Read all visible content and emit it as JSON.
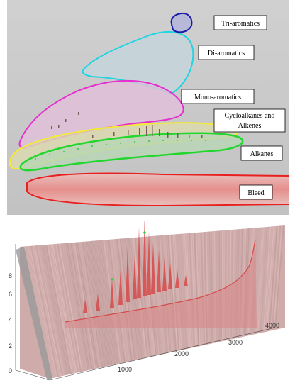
{
  "chart_data": [
    {
      "type": "contour-map",
      "regions": [
        {
          "name": "Tri-aromatics",
          "color": "#1a1aa8",
          "fill": "#b8b8d8"
        },
        {
          "name": "Di-aromatics",
          "color": "#22d4e0",
          "fill": "#c4d6dc"
        },
        {
          "name": "Mono-aromatics",
          "color": "#e62ecf",
          "fill": "#dfbfd9"
        },
        {
          "name_line1": "Cycloalkanes and",
          "name_line2": "Alkenes",
          "color": "#f2ea35",
          "fill": "#dcd8b0"
        },
        {
          "name": "Alkanes",
          "color": "#22d62e",
          "fill": "#b9d6b6"
        },
        {
          "name": "Bleed",
          "color": "#e82020",
          "fill": "#e8a9a6"
        }
      ],
      "background": "#c9c9c9"
    },
    {
      "type": "3d-surface",
      "x_ticks": [
        "1000",
        "2000",
        "3000",
        "4000"
      ],
      "z_ticks": [
        "0",
        "2",
        "4",
        "6",
        "8"
      ],
      "surface_color": "#c79c9a",
      "peak_color": "#d64a4a",
      "marker_color": "#2ecc40"
    }
  ]
}
